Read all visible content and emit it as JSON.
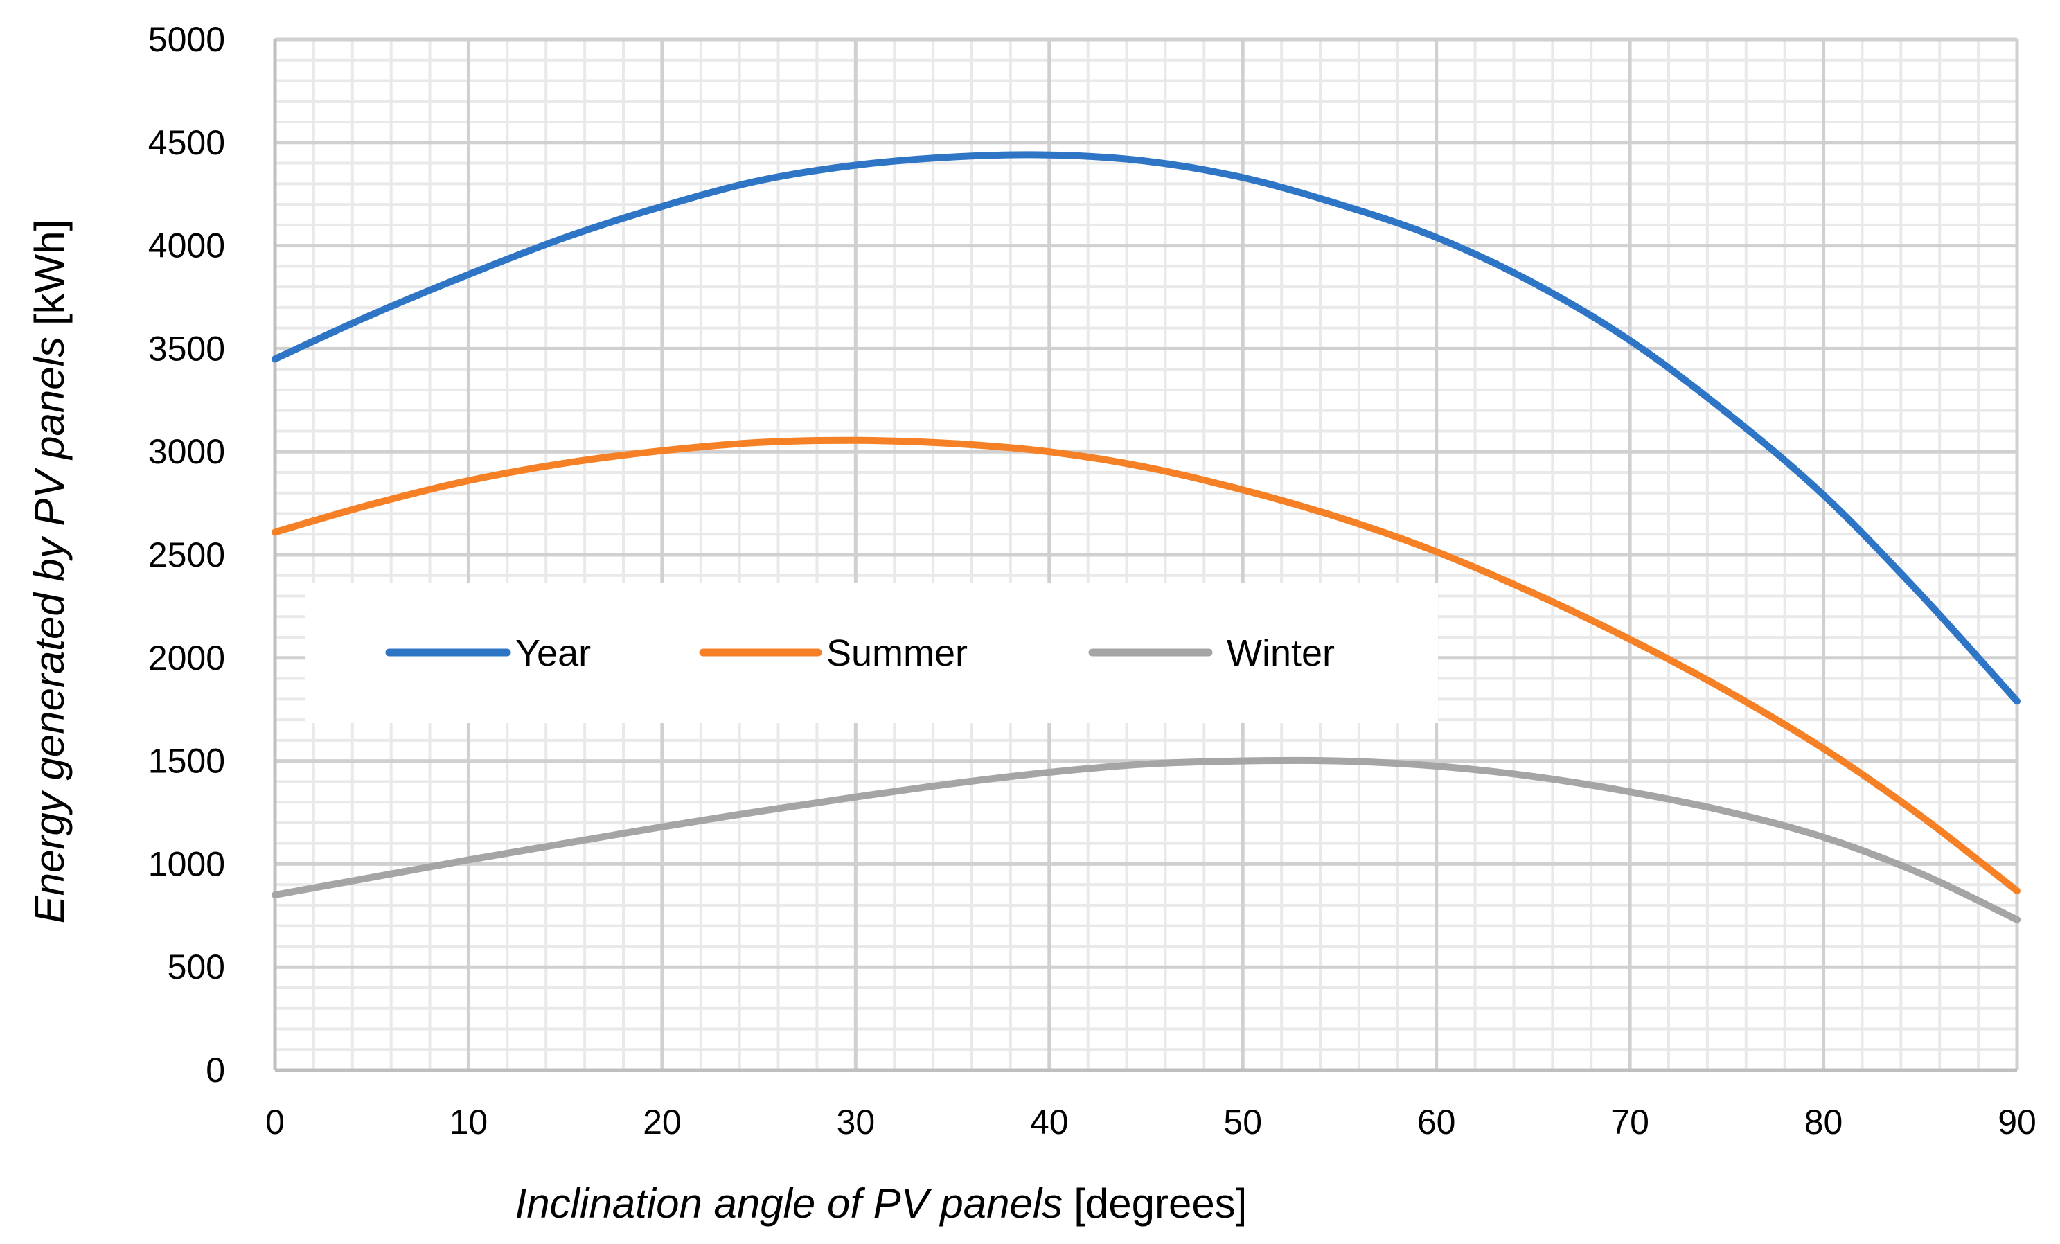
{
  "chart_data": {
    "type": "line",
    "x_label": {
      "main": "Inclination angle of PV panels",
      "unit": "[degrees]"
    },
    "y_label": {
      "main": "Energy generated by PV panels",
      "unit": "[kWh]"
    },
    "xlim": [
      0,
      90
    ],
    "ylim": [
      0,
      5000
    ],
    "x_ticks": [
      "0",
      "10",
      "20",
      "30",
      "40",
      "50",
      "60",
      "70",
      "80",
      "90"
    ],
    "y_ticks": [
      "0",
      "500",
      "1000",
      "1500",
      "2000",
      "2500",
      "3000",
      "3500",
      "4000",
      "4500",
      "5000"
    ],
    "x_tick_values": [
      0,
      10,
      20,
      30,
      40,
      50,
      60,
      70,
      80,
      90
    ],
    "y_tick_values": [
      0,
      500,
      1000,
      1500,
      2000,
      2500,
      3000,
      3500,
      4000,
      4500,
      5000
    ],
    "grid": true,
    "legend_position": "center-left",
    "x": [
      0,
      5,
      10,
      15,
      20,
      25,
      30,
      35,
      40,
      45,
      50,
      55,
      60,
      65,
      70,
      75,
      80,
      85,
      90
    ],
    "series": [
      {
        "name": "Year",
        "color": "#2E75C6",
        "values": [
          3450,
          3665,
          3860,
          4040,
          4190,
          4315,
          4390,
          4430,
          4440,
          4410,
          4330,
          4200,
          4040,
          3820,
          3540,
          3190,
          2790,
          2310,
          1790
        ]
      },
      {
        "name": "Summer",
        "color": "#F58025",
        "values": [
          2610,
          2745,
          2860,
          2945,
          3005,
          3045,
          3055,
          3040,
          3000,
          2925,
          2815,
          2680,
          2515,
          2315,
          2090,
          1840,
          1560,
          1235,
          870
        ]
      },
      {
        "name": "Winter",
        "color": "#A5A5A5",
        "values": [
          850,
          935,
          1020,
          1100,
          1180,
          1255,
          1325,
          1390,
          1445,
          1485,
          1500,
          1500,
          1475,
          1425,
          1350,
          1255,
          1130,
          955,
          730
        ]
      }
    ]
  }
}
